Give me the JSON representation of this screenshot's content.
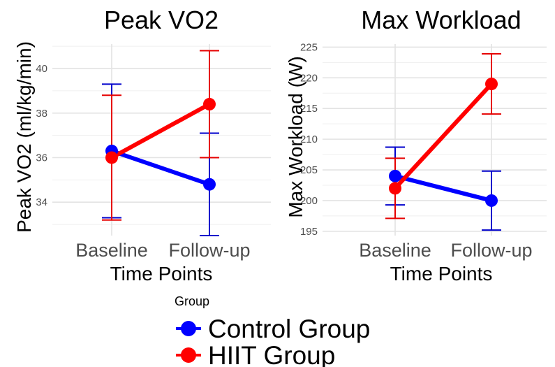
{
  "chart_data": [
    {
      "type": "line",
      "title": "Peak VO2",
      "xlabel": "Time Points",
      "ylabel": "Peak VO2 (ml/kg/min)",
      "categories": [
        "Baseline",
        "Follow-up"
      ],
      "ylim": [
        32.5,
        41.1
      ],
      "yticks": [
        34,
        36,
        38,
        40
      ],
      "grid": true,
      "series": [
        {
          "name": "Control Group",
          "color": "#0000ff",
          "errcolor": "#0000cc",
          "values": [
            36.3,
            34.8
          ],
          "lower": [
            33.3,
            32.5
          ],
          "upper": [
            39.3,
            37.1
          ]
        },
        {
          "name": "HIIT Group",
          "color": "#ff0000",
          "errcolor": "#e60000",
          "values": [
            36.0,
            38.4
          ],
          "lower": [
            33.2,
            36.0
          ],
          "upper": [
            38.8,
            40.8
          ]
        }
      ]
    },
    {
      "type": "line",
      "title": "Max Workload",
      "xlabel": "Time Points",
      "ylabel": "Max Workload (W)",
      "categories": [
        "Baseline",
        "Follow-up"
      ],
      "ylim": [
        194.3,
        225.5
      ],
      "yticks": [
        195,
        200,
        205,
        210,
        215,
        220,
        225
      ],
      "grid": true,
      "series": [
        {
          "name": "Control Group",
          "color": "#0000ff",
          "errcolor": "#0000cc",
          "values": [
            204.0,
            200.0
          ],
          "lower": [
            199.3,
            195.2
          ],
          "upper": [
            208.7,
            204.8
          ]
        },
        {
          "name": "HIIT Group",
          "color": "#ff0000",
          "errcolor": "#e60000",
          "values": [
            202.0,
            219.0
          ],
          "lower": [
            197.1,
            214.1
          ],
          "upper": [
            206.9,
            223.9
          ]
        }
      ]
    }
  ],
  "legend": {
    "title": "Group",
    "placement": "bottom",
    "items": [
      {
        "label": "Control Group",
        "color": "#0000ff"
      },
      {
        "label": "HIIT Group",
        "color": "#ff0000"
      }
    ]
  }
}
